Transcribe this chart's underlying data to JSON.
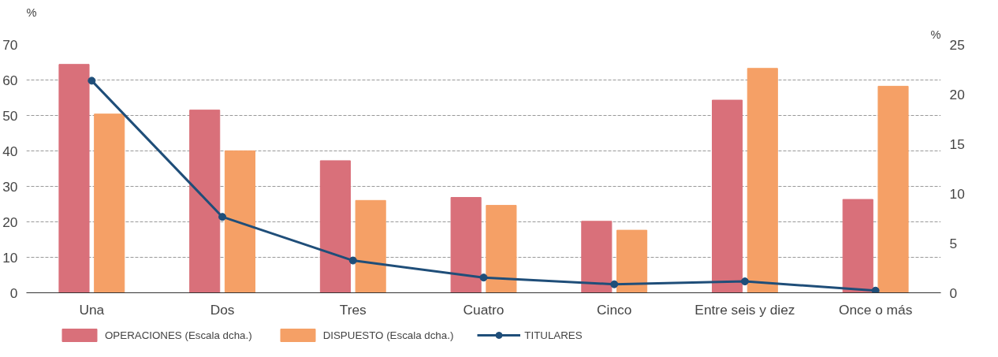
{
  "chart_data": {
    "type": "bar",
    "categories": [
      "Una",
      "Dos",
      "Tres",
      "Cuatro",
      "Cinco",
      "Entre seis y diez",
      "Once o más"
    ],
    "ylabel": "%",
    "y2label": "%",
    "ylim": [
      0,
      70
    ],
    "yticks": [
      0,
      10,
      20,
      30,
      40,
      50,
      60,
      70
    ],
    "y2lim": [
      0,
      25
    ],
    "y2ticks": [
      0,
      5,
      10,
      15,
      20,
      25
    ],
    "grid": "y",
    "legend": "bottom",
    "series": [
      {
        "name": "OPERACIONES (Escala dcha.)",
        "axis": "y2",
        "color": "#d9707a",
        "values": [
          23.0,
          18.4,
          13.3,
          9.6,
          7.2,
          19.4,
          9.4
        ]
      },
      {
        "name": "DISPUESTO (Escala dcha.)",
        "axis": "y2",
        "color": "#f5a066",
        "values": [
          18.0,
          14.3,
          9.3,
          8.8,
          6.3,
          22.6,
          20.8
        ]
      },
      {
        "name": "TITULARES",
        "type": "line",
        "marker": "circle",
        "color": "#1f4e79",
        "values": [
          59.8,
          21.4,
          9.1,
          4.3,
          2.4,
          3.2,
          0.6
        ]
      }
    ]
  }
}
